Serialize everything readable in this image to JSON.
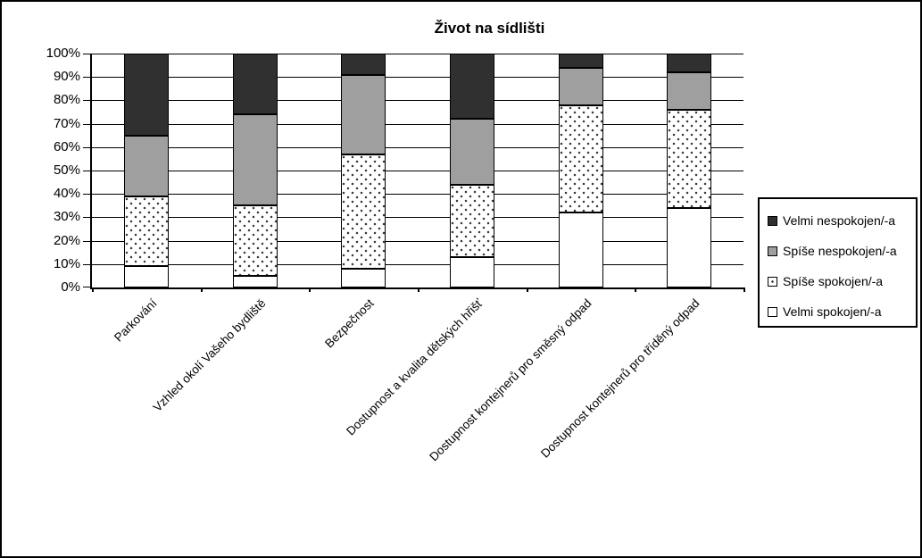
{
  "chart_data": {
    "type": "bar",
    "subtype": "stacked-100-percent",
    "title": "Život na sídlišti",
    "categories": [
      "Parkování",
      "Vzhled okolí Vašeho bydliště",
      "Bezpečnost",
      "Dostupnost a kvalita dětských hřišť",
      "Dostupnost kontejnerů pro směsný odpad",
      "Dostupnost kontejnerů pro tříděný odpad"
    ],
    "series": [
      {
        "name": "Velmi spokojen/-a",
        "style": "white",
        "values": [
          9,
          5,
          8,
          13,
          32,
          34
        ]
      },
      {
        "name": "Spíše spokojen/-a",
        "style": "dotted",
        "values": [
          30,
          30,
          49,
          31,
          46,
          42
        ]
      },
      {
        "name": "Spíše nespokojen/-a",
        "style": "gray",
        "values": [
          26,
          39,
          34,
          28,
          16,
          16
        ]
      },
      {
        "name": "Velmi nespokojen/-a",
        "style": "dark",
        "values": [
          35,
          26,
          9,
          28,
          6,
          8
        ]
      }
    ],
    "stack_order_note": "series listed bottom-to-top",
    "yticks": [
      "0%",
      "10%",
      "20%",
      "30%",
      "40%",
      "50%",
      "60%",
      "70%",
      "80%",
      "90%",
      "100%"
    ],
    "ylim": [
      0,
      100
    ],
    "grid": true,
    "legend": {
      "position": "right",
      "entries": [
        {
          "label": "Velmi nespokojen/-a",
          "style": "dark"
        },
        {
          "label": "Spíše nespokojen/-a",
          "style": "gray"
        },
        {
          "label": "Spíše spokojen/-a",
          "style": "dotted"
        },
        {
          "label": "Velmi spokojen/-a",
          "style": "white"
        }
      ]
    },
    "colors": {
      "dark": "#303030",
      "gray": "#9f9f9f",
      "white": "#ffffff",
      "dot": "#3a3a3a",
      "axis": "#000000"
    }
  }
}
